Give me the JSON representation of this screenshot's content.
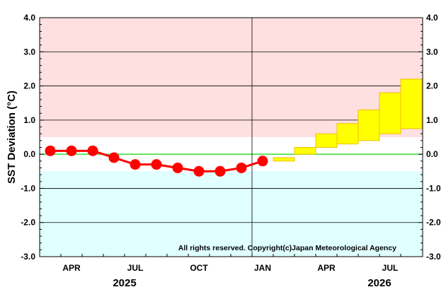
{
  "chart_data": {
    "type": "line",
    "ylabel": "SST Deviation (°C)",
    "ylim": [
      -3.0,
      4.0
    ],
    "yticks": [
      "-3.0",
      "-2.0",
      "-1.0",
      "0.0",
      "1.0",
      "2.0",
      "3.0",
      "4.0"
    ],
    "x_months": [
      "2025-03",
      "2025-04",
      "2025-05",
      "2025-06",
      "2025-07",
      "2025-08",
      "2025-09",
      "2025-10",
      "2025-11",
      "2025-12",
      "2026-01",
      "2026-02",
      "2026-03",
      "2026-04",
      "2026-05",
      "2026-06",
      "2026-07",
      "2026-08"
    ],
    "xtick_labels": [
      {
        "label": "APR",
        "month_index": 1
      },
      {
        "label": "JUL",
        "month_index": 4
      },
      {
        "label": "OCT",
        "month_index": 7
      },
      {
        "label": "JAN",
        "month_index": 10
      },
      {
        "label": "APR",
        "month_index": 13
      },
      {
        "label": "JUL",
        "month_index": 16
      }
    ],
    "year_labels": [
      {
        "label": "2025",
        "month_index": 4
      },
      {
        "label": "2026",
        "month_index": 16
      }
    ],
    "observed": {
      "name": "Observed",
      "color": "#ff0000",
      "month_index": [
        0,
        1,
        2,
        3,
        4,
        5,
        6,
        7,
        8,
        9,
        10
      ],
      "values": [
        0.1,
        0.1,
        0.1,
        -0.1,
        -0.3,
        -0.3,
        -0.4,
        -0.5,
        -0.5,
        -0.4,
        -0.2
      ]
    },
    "forecast": {
      "name": "Forecast range",
      "color": "#ffff00",
      "month_index": [
        11,
        12,
        13,
        14,
        15,
        16,
        17
      ],
      "low": [
        -0.2,
        0.0,
        0.2,
        0.3,
        0.4,
        0.6,
        0.75
      ],
      "high": [
        -0.1,
        0.2,
        0.6,
        0.9,
        1.3,
        1.8,
        2.2
      ]
    },
    "bands": [
      {
        "name": "warm",
        "from": 0.5,
        "to": 4.0,
        "color": "#ffe0e0"
      },
      {
        "name": "cold",
        "from": -3.0,
        "to": -0.5,
        "color": "#e0ffff"
      }
    ],
    "annotation": "All rights reserved. Copyright(c)Japan Meteorological Agency"
  }
}
